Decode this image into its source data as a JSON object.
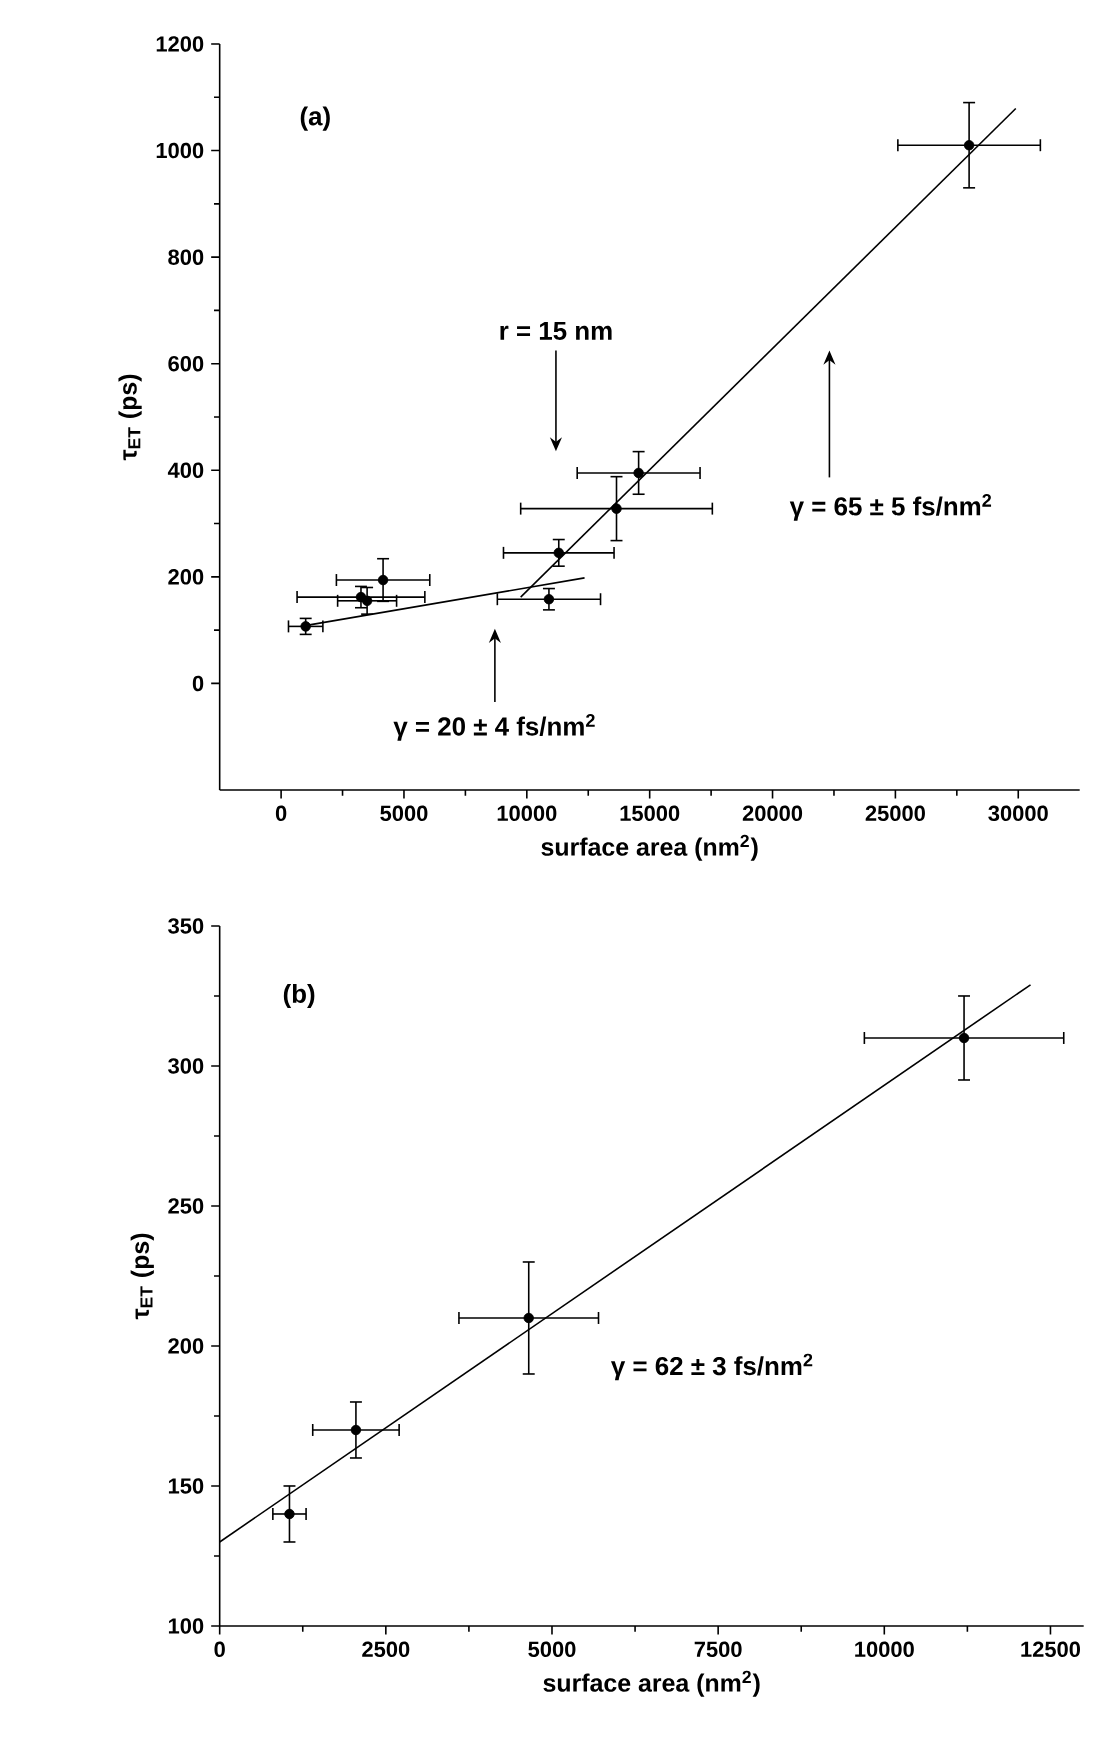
{
  "chart_data": [
    {
      "type": "scatter",
      "xlabel": "surface area (nm$^{2}$)",
      "ylabel": "τ$_{ET}$ (ps)",
      "xlim": [
        -2500,
        32500
      ],
      "ylim": [
        -200,
        1200
      ],
      "xticks": [
        0,
        5000,
        10000,
        15000,
        20000,
        25000,
        30000
      ],
      "yticks": [
        0,
        200,
        400,
        600,
        800,
        1000,
        1200
      ],
      "line_style": "solid",
      "series": [
        {
          "color": "#000000",
          "marker": "circle",
          "x": [
            1000,
            3250,
            3500,
            4150,
            10900,
            11300,
            13650,
            14550,
            28000
          ],
          "values": [
            107,
            162,
            155,
            194,
            158,
            245,
            328,
            395,
            1010
          ],
          "errors": [
            15,
            20,
            25,
            40,
            20,
            25,
            60,
            40,
            80
          ],
          "xerrors": [
            700,
            2600,
            1200,
            1900,
            2100,
            2250,
            3900,
            2500,
            2900
          ]
        },
        {
          "type": "line",
          "marker": "none",
          "color": "#000000",
          "x": [
            800,
            12350
          ],
          "values": [
            107,
            198
          ]
        },
        {
          "type": "line",
          "marker": "none",
          "color": "#000000",
          "x": [
            9750,
            29900
          ],
          "values": [
            162,
            1079
          ]
        }
      ],
      "annotations": [
        "(a)",
        "r = 15 nm",
        "γ = 65 ± 5 fs/nm$^{2}$",
        "γ = 20 ± 4 fs/nm$^{2}$"
      ]
    },
    {
      "type": "scatter",
      "xlabel": "surface area (nm$^{2}$)",
      "ylabel": "τ$_{ET}$ (ps)",
      "xlim": [
        0,
        13000
      ],
      "ylim": [
        100,
        350
      ],
      "xticks": [
        0,
        2500,
        5000,
        7500,
        10000,
        12500
      ],
      "yticks": [
        100,
        150,
        200,
        250,
        300,
        350
      ],
      "line_style": "solid",
      "series": [
        {
          "color": "#000000",
          "marker": "circle",
          "x": [
            1050,
            2050,
            4650,
            11200
          ],
          "values": [
            140,
            170,
            210,
            310
          ],
          "errors": [
            10,
            10,
            20,
            15
          ],
          "xerrors": [
            250,
            650,
            1050,
            1500
          ]
        },
        {
          "type": "line",
          "marker": "none",
          "color": "#000000",
          "x": [
            0,
            12200
          ],
          "values": [
            130,
            329
          ]
        }
      ],
      "annotations": [
        "(b)",
        "γ = 62 ± 3 fs/nm$^{2}$"
      ]
    }
  ]
}
